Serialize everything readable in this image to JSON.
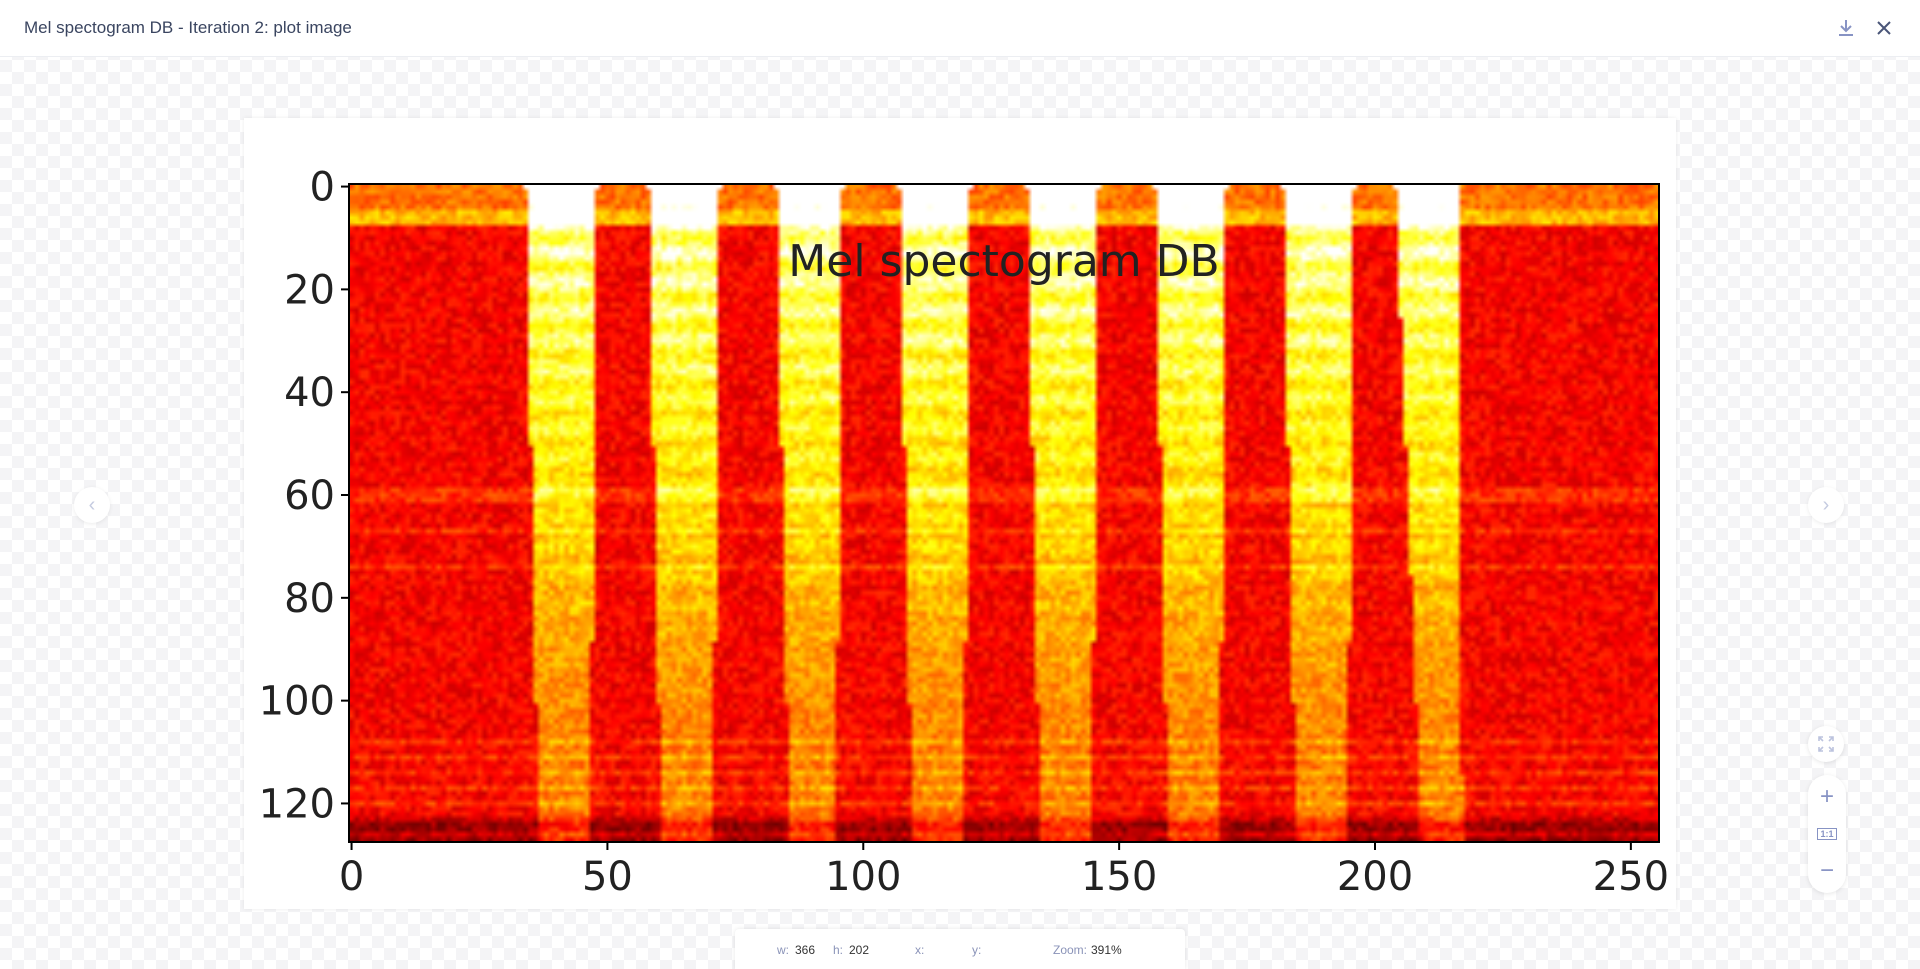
{
  "header": {
    "title": "Mel spectogram DB - Iteration 2: plot image",
    "download_icon": "download-icon",
    "close_icon": "close-icon"
  },
  "info_bar": {
    "w_label": "w:",
    "w_value": "366",
    "h_label": "h:",
    "h_value": "202",
    "x_label": "x:",
    "y_label": "y:",
    "zoom_label": "Zoom:",
    "zoom_value": "391%"
  },
  "controls": {
    "fit_icon": "expand-icon",
    "zoom_in_icon": "plus-icon",
    "actual_size_label": "1:1",
    "zoom_out_icon": "minus-icon"
  },
  "colors": {
    "accent": "#8793c4",
    "colormap": "hot"
  },
  "chart_data": {
    "type": "heatmap",
    "title": "Mel spectogram DB",
    "xlabel": "",
    "ylabel": "",
    "xlim": [
      -0.5,
      255.5
    ],
    "ylim": [
      127.5,
      -0.5
    ],
    "xticks": [
      "0",
      "50",
      "100",
      "150",
      "200",
      "250"
    ],
    "yticks": [
      "0",
      "20",
      "40",
      "60",
      "80",
      "100",
      "120"
    ],
    "shape": [
      128,
      256
    ],
    "colormap": "hot",
    "bursts_x": [
      [
        34,
        48
      ],
      [
        58,
        72
      ],
      [
        83,
        96
      ],
      [
        107,
        121
      ],
      [
        132,
        146
      ],
      [
        157,
        171
      ],
      [
        182,
        196
      ],
      [
        204,
        216
      ]
    ],
    "grid": false
  }
}
